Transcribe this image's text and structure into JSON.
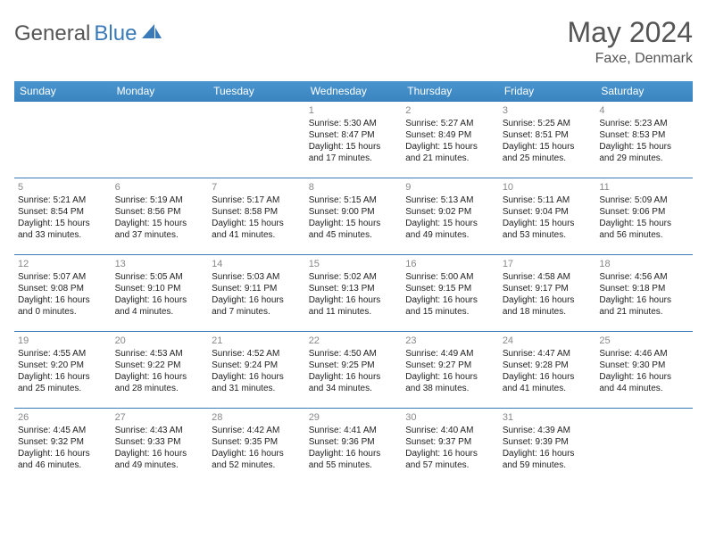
{
  "logo": {
    "part1": "General",
    "part2": "Blue"
  },
  "title": "May 2024",
  "subtitle": "Faxe, Denmark",
  "headers": [
    "Sunday",
    "Monday",
    "Tuesday",
    "Wednesday",
    "Thursday",
    "Friday",
    "Saturday"
  ],
  "colors": {
    "header_bg": "#3a85c0",
    "border": "#3a7ab8",
    "title": "#555555",
    "text": "#222222",
    "daynum": "#888888"
  },
  "weeks": [
    [
      null,
      null,
      null,
      {
        "n": "1",
        "sr": "5:30 AM",
        "ss": "8:47 PM",
        "d1": "15 hours",
        "d2": "and 17 minutes."
      },
      {
        "n": "2",
        "sr": "5:27 AM",
        "ss": "8:49 PM",
        "d1": "15 hours",
        "d2": "and 21 minutes."
      },
      {
        "n": "3",
        "sr": "5:25 AM",
        "ss": "8:51 PM",
        "d1": "15 hours",
        "d2": "and 25 minutes."
      },
      {
        "n": "4",
        "sr": "5:23 AM",
        "ss": "8:53 PM",
        "d1": "15 hours",
        "d2": "and 29 minutes."
      }
    ],
    [
      {
        "n": "5",
        "sr": "5:21 AM",
        "ss": "8:54 PM",
        "d1": "15 hours",
        "d2": "and 33 minutes."
      },
      {
        "n": "6",
        "sr": "5:19 AM",
        "ss": "8:56 PM",
        "d1": "15 hours",
        "d2": "and 37 minutes."
      },
      {
        "n": "7",
        "sr": "5:17 AM",
        "ss": "8:58 PM",
        "d1": "15 hours",
        "d2": "and 41 minutes."
      },
      {
        "n": "8",
        "sr": "5:15 AM",
        "ss": "9:00 PM",
        "d1": "15 hours",
        "d2": "and 45 minutes."
      },
      {
        "n": "9",
        "sr": "5:13 AM",
        "ss": "9:02 PM",
        "d1": "15 hours",
        "d2": "and 49 minutes."
      },
      {
        "n": "10",
        "sr": "5:11 AM",
        "ss": "9:04 PM",
        "d1": "15 hours",
        "d2": "and 53 minutes."
      },
      {
        "n": "11",
        "sr": "5:09 AM",
        "ss": "9:06 PM",
        "d1": "15 hours",
        "d2": "and 56 minutes."
      }
    ],
    [
      {
        "n": "12",
        "sr": "5:07 AM",
        "ss": "9:08 PM",
        "d1": "16 hours",
        "d2": "and 0 minutes."
      },
      {
        "n": "13",
        "sr": "5:05 AM",
        "ss": "9:10 PM",
        "d1": "16 hours",
        "d2": "and 4 minutes."
      },
      {
        "n": "14",
        "sr": "5:03 AM",
        "ss": "9:11 PM",
        "d1": "16 hours",
        "d2": "and 7 minutes."
      },
      {
        "n": "15",
        "sr": "5:02 AM",
        "ss": "9:13 PM",
        "d1": "16 hours",
        "d2": "and 11 minutes."
      },
      {
        "n": "16",
        "sr": "5:00 AM",
        "ss": "9:15 PM",
        "d1": "16 hours",
        "d2": "and 15 minutes."
      },
      {
        "n": "17",
        "sr": "4:58 AM",
        "ss": "9:17 PM",
        "d1": "16 hours",
        "d2": "and 18 minutes."
      },
      {
        "n": "18",
        "sr": "4:56 AM",
        "ss": "9:18 PM",
        "d1": "16 hours",
        "d2": "and 21 minutes."
      }
    ],
    [
      {
        "n": "19",
        "sr": "4:55 AM",
        "ss": "9:20 PM",
        "d1": "16 hours",
        "d2": "and 25 minutes."
      },
      {
        "n": "20",
        "sr": "4:53 AM",
        "ss": "9:22 PM",
        "d1": "16 hours",
        "d2": "and 28 minutes."
      },
      {
        "n": "21",
        "sr": "4:52 AM",
        "ss": "9:24 PM",
        "d1": "16 hours",
        "d2": "and 31 minutes."
      },
      {
        "n": "22",
        "sr": "4:50 AM",
        "ss": "9:25 PM",
        "d1": "16 hours",
        "d2": "and 34 minutes."
      },
      {
        "n": "23",
        "sr": "4:49 AM",
        "ss": "9:27 PM",
        "d1": "16 hours",
        "d2": "and 38 minutes."
      },
      {
        "n": "24",
        "sr": "4:47 AM",
        "ss": "9:28 PM",
        "d1": "16 hours",
        "d2": "and 41 minutes."
      },
      {
        "n": "25",
        "sr": "4:46 AM",
        "ss": "9:30 PM",
        "d1": "16 hours",
        "d2": "and 44 minutes."
      }
    ],
    [
      {
        "n": "26",
        "sr": "4:45 AM",
        "ss": "9:32 PM",
        "d1": "16 hours",
        "d2": "and 46 minutes."
      },
      {
        "n": "27",
        "sr": "4:43 AM",
        "ss": "9:33 PM",
        "d1": "16 hours",
        "d2": "and 49 minutes."
      },
      {
        "n": "28",
        "sr": "4:42 AM",
        "ss": "9:35 PM",
        "d1": "16 hours",
        "d2": "and 52 minutes."
      },
      {
        "n": "29",
        "sr": "4:41 AM",
        "ss": "9:36 PM",
        "d1": "16 hours",
        "d2": "and 55 minutes."
      },
      {
        "n": "30",
        "sr": "4:40 AM",
        "ss": "9:37 PM",
        "d1": "16 hours",
        "d2": "and 57 minutes."
      },
      {
        "n": "31",
        "sr": "4:39 AM",
        "ss": "9:39 PM",
        "d1": "16 hours",
        "d2": "and 59 minutes."
      },
      null
    ]
  ],
  "labels": {
    "sunrise": "Sunrise:",
    "sunset": "Sunset:",
    "daylight": "Daylight:"
  }
}
